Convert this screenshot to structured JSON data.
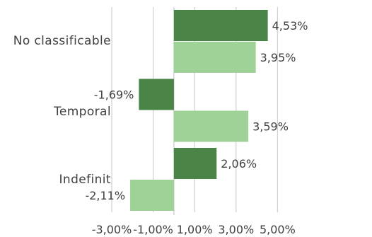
{
  "chart_data": {
    "type": "bar",
    "orientation": "horizontal",
    "categories": [
      "No classificable",
      "Temporal",
      "Indefinit"
    ],
    "series": [
      {
        "values": [
          4.53,
          -1.69,
          2.06
        ],
        "color": "#4a8446"
      },
      {
        "values": [
          3.95,
          3.59,
          -2.11
        ],
        "color": "#9ed296"
      }
    ],
    "data_labels": [
      [
        "4,53%",
        "-1,69%",
        "2,06%"
      ],
      [
        "3,95%",
        "3,59%",
        "-2,11%"
      ]
    ],
    "xlim": [
      -3.0,
      5.0
    ],
    "xticks": [
      -3,
      -1,
      1,
      3,
      5
    ],
    "xtick_labels": [
      "-3,00%",
      "-1,00%",
      "1,00%",
      "3,00%",
      "5,00%"
    ],
    "grid": true,
    "legend": "none"
  }
}
